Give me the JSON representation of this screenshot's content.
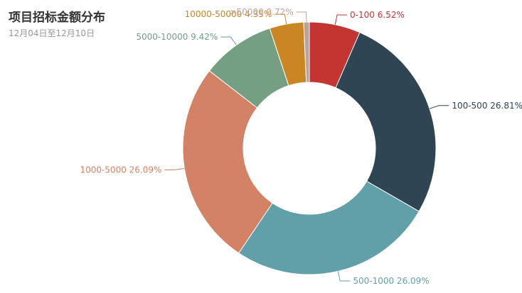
{
  "chart_data": {
    "type": "pie",
    "variant": "donut",
    "title": "项目招标金额分布",
    "subtitle": "12月04日至12月10日",
    "legend": "none",
    "slices": [
      {
        "label": "0-100",
        "percent": 6.52,
        "color": "#c23531"
      },
      {
        "label": "100-500",
        "percent": 26.81,
        "color": "#2f4554"
      },
      {
        "label": "500-1000",
        "percent": 26.09,
        "color": "#61a0a8"
      },
      {
        "label": "1000-5000",
        "percent": 26.09,
        "color": "#d48265"
      },
      {
        "label": "5000-10000",
        "percent": 9.42,
        "color": "#749f83"
      },
      {
        "label": "10000-50000",
        "percent": 4.35,
        "color": "#ca8622"
      },
      {
        "label": ">50000",
        "percent": 0.72,
        "color": "#bda29a"
      }
    ]
  }
}
